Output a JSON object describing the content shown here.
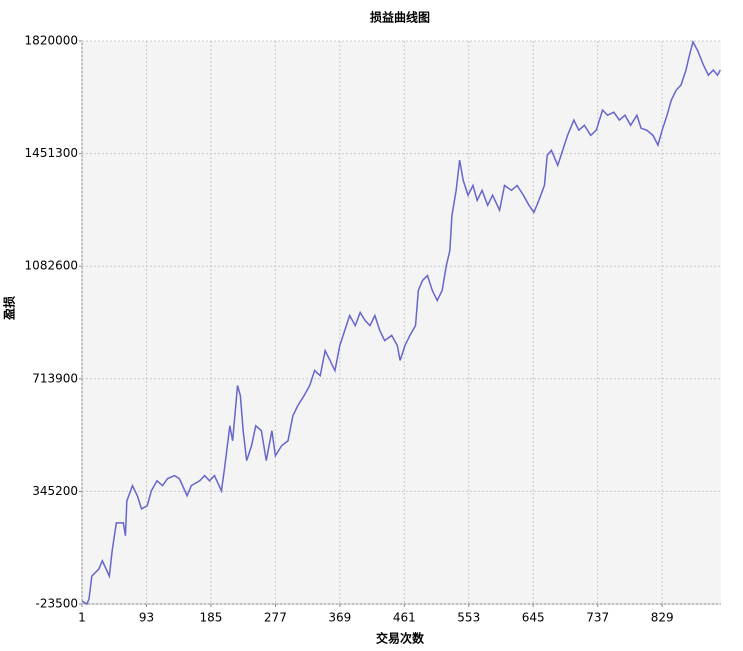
{
  "chart_data": {
    "type": "line",
    "title": "损益曲线图",
    "x_label": "交易次数",
    "y_label": "盈损",
    "x": [
      1,
      8,
      11,
      15,
      25,
      30,
      40,
      44,
      50,
      60,
      63,
      65,
      73,
      80,
      86,
      94,
      100,
      108,
      116,
      123,
      133,
      140,
      151,
      157,
      169,
      176,
      183,
      190,
      200,
      204,
      212,
      216,
      223,
      227,
      231,
      236,
      243,
      249,
      257,
      264,
      272,
      277,
      286,
      295,
      302,
      309,
      318,
      326,
      333,
      341,
      348,
      355,
      362,
      369,
      376,
      383,
      391,
      398,
      405,
      412,
      419,
      426,
      433,
      443,
      451,
      455,
      462,
      469,
      477,
      481,
      487,
      494,
      501,
      508,
      515,
      521,
      526,
      529,
      535,
      540,
      545,
      552,
      559,
      565,
      572,
      580,
      587,
      597,
      604,
      614,
      622,
      631,
      639,
      646,
      653,
      661,
      665,
      671,
      680,
      687,
      694,
      703,
      710,
      718,
      727,
      735,
      744,
      751,
      760,
      768,
      776,
      784,
      793,
      799,
      807,
      816,
      823,
      829,
      836,
      842,
      849,
      856,
      863,
      868,
      873,
      880,
      888,
      895,
      902,
      908,
      912
    ],
    "series": [
      {
        "name": "盈损",
        "color": "#6666cc",
        "values": [
          -14000,
          -23500,
          -7000,
          68000,
          91000,
          118000,
          68000,
          150000,
          242000,
          242000,
          200000,
          314000,
          364000,
          331000,
          288000,
          298000,
          347000,
          380000,
          364000,
          387000,
          397000,
          387000,
          331000,
          364000,
          380000,
          397000,
          380000,
          397000,
          347000,
          413000,
          560000,
          511000,
          692000,
          659000,
          544000,
          446000,
          495000,
          560000,
          544000,
          446000,
          544000,
          462000,
          495000,
          511000,
          593000,
          626000,
          659000,
          692000,
          741000,
          724000,
          806000,
          774000,
          741000,
          823000,
          872000,
          921000,
          888000,
          931000,
          905000,
          888000,
          921000,
          872000,
          839000,
          856000,
          823000,
          774000,
          823000,
          856000,
          888000,
          1003000,
          1036000,
          1052000,
          1003000,
          970000,
          1003000,
          1085000,
          1134000,
          1249000,
          1331000,
          1430000,
          1364000,
          1315000,
          1347000,
          1298000,
          1331000,
          1282000,
          1315000,
          1266000,
          1347000,
          1331000,
          1347000,
          1315000,
          1282000,
          1259000,
          1298000,
          1347000,
          1446000,
          1462000,
          1413000,
          1462000,
          1511000,
          1561000,
          1528000,
          1544000,
          1511000,
          1528000,
          1594000,
          1577000,
          1587000,
          1561000,
          1577000,
          1544000,
          1577000,
          1534000,
          1528000,
          1511000,
          1479000,
          1528000,
          1577000,
          1626000,
          1659000,
          1676000,
          1725000,
          1774000,
          1817000,
          1787000,
          1741000,
          1708000,
          1725000,
          1708000,
          1725000
        ]
      }
    ],
    "xlim": [
      1,
      913
    ],
    "xticks": [
      1,
      93,
      185,
      277,
      369,
      461,
      553,
      645,
      737,
      829
    ],
    "ylim": [
      -23500,
      1820000
    ],
    "yticks": [
      -23500,
      345200,
      713900,
      1082600,
      1451300,
      1820000
    ],
    "grid": true
  }
}
